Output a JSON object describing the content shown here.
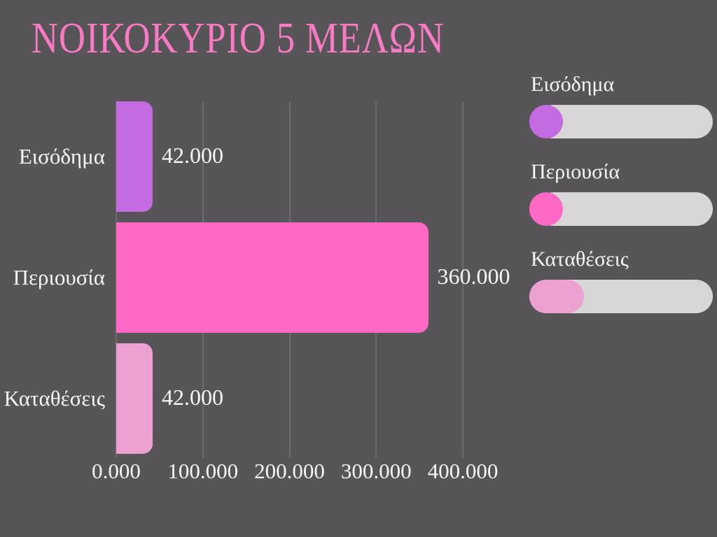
{
  "title": "ΝΟΙΚΟΚΥΡΙΟ 5 ΜΕΛΩΝ",
  "colors": {
    "background": "#575557",
    "title": "#f87ac2",
    "text": "#f7f5f6",
    "grid": "#6c6a6c",
    "legend_track": "#d8d6d7",
    "series": [
      "#c46be2",
      "#ff69c5",
      "#eda1d0"
    ]
  },
  "chart_data": {
    "type": "bar",
    "orientation": "horizontal",
    "title": "ΝΟΙΚΟΚΥΡΙΟ 5 ΜΕΛΩΝ",
    "categories": [
      "Εισόδημα",
      "Περιουσία",
      "Καταθέσεις"
    ],
    "values": [
      42000,
      360000,
      42000
    ],
    "value_labels": [
      "42.000",
      "360.000",
      "42.000"
    ],
    "bar_colors": [
      "#c46be2",
      "#ff69c5",
      "#eda1d0"
    ],
    "x_ticks": [
      {
        "label": "0.000",
        "value": 0
      },
      {
        "label": "100.000",
        "value": 100000
      },
      {
        "label": "200.000",
        "value": 200000
      },
      {
        "label": "300.000",
        "value": 300000
      },
      {
        "label": "400.000",
        "value": 400000
      }
    ],
    "xlim": [
      0,
      400000
    ],
    "xlabel": "",
    "ylabel": "",
    "grid": true,
    "legend_position": "right"
  },
  "legend": {
    "items": [
      {
        "label": "Εισόδημα",
        "color": "#c46be2",
        "marker": "circle"
      },
      {
        "label": "Περιουσία",
        "color": "#ff69c5",
        "marker": "circle"
      },
      {
        "label": "Καταθέσεις",
        "color": "#eda1d0",
        "marker": "pill"
      }
    ]
  }
}
